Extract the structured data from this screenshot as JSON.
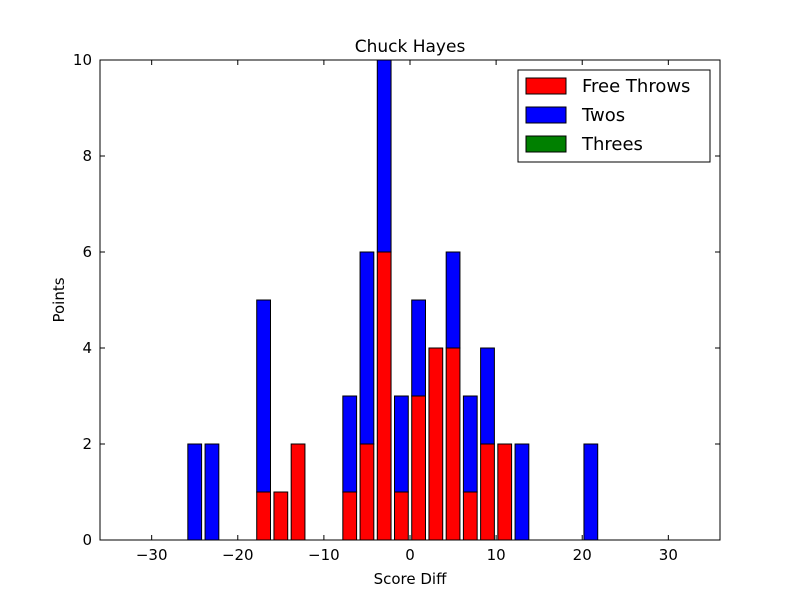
{
  "chart_data": {
    "type": "bar",
    "stacked": true,
    "title": "Chuck Hayes",
    "xlabel": "Score Diff",
    "ylabel": "Points",
    "xlim": [
      -36,
      36
    ],
    "ylim": [
      0,
      10
    ],
    "xticks": [
      -30,
      -20,
      -10,
      0,
      10,
      20,
      30
    ],
    "xtick_labels": [
      "−30",
      "−20",
      "−10",
      "0",
      "10",
      "20",
      "30"
    ],
    "yticks": [
      0,
      2,
      4,
      6,
      8,
      10
    ],
    "ytick_labels": [
      "0",
      "2",
      "4",
      "6",
      "8",
      "10"
    ],
    "bar_width": 1.6,
    "x": [
      -35,
      -33,
      -31,
      -29,
      -27,
      -25,
      -23,
      -21,
      -19,
      -17,
      -15,
      -13,
      -11,
      -9,
      -7,
      -5,
      -3,
      -1,
      1,
      3,
      5,
      7,
      9,
      11,
      13,
      15,
      17,
      19,
      21,
      23,
      25,
      27,
      29,
      31,
      33,
      35
    ],
    "series": [
      {
        "name": "Free Throws",
        "color": "#ff0000",
        "values": [
          0,
          0,
          0,
          0,
          0,
          0,
          0,
          0,
          0,
          1,
          1,
          2,
          0,
          0,
          1,
          2,
          6,
          1,
          3,
          4,
          4,
          1,
          2,
          2,
          0,
          0,
          0,
          0,
          0,
          0,
          0,
          0,
          0,
          0,
          0,
          0
        ]
      },
      {
        "name": "Twos",
        "color": "#0000ff",
        "values": [
          0,
          0,
          0,
          0,
          0,
          2,
          2,
          0,
          0,
          4,
          0,
          0,
          0,
          0,
          2,
          4,
          4,
          2,
          2,
          0,
          2,
          2,
          2,
          0,
          2,
          0,
          0,
          0,
          2,
          0,
          0,
          0,
          0,
          0,
          0,
          0
        ]
      },
      {
        "name": "Threes",
        "color": "#008000",
        "values": [
          0,
          0,
          0,
          0,
          0,
          0,
          0,
          0,
          0,
          0,
          0,
          0,
          0,
          0,
          0,
          0,
          0,
          0,
          0,
          0,
          0,
          0,
          0,
          0,
          0,
          0,
          0,
          0,
          0,
          0,
          0,
          0,
          0,
          0,
          0,
          0
        ]
      }
    ],
    "legend": {
      "position": "top-right"
    },
    "grid": false
  }
}
